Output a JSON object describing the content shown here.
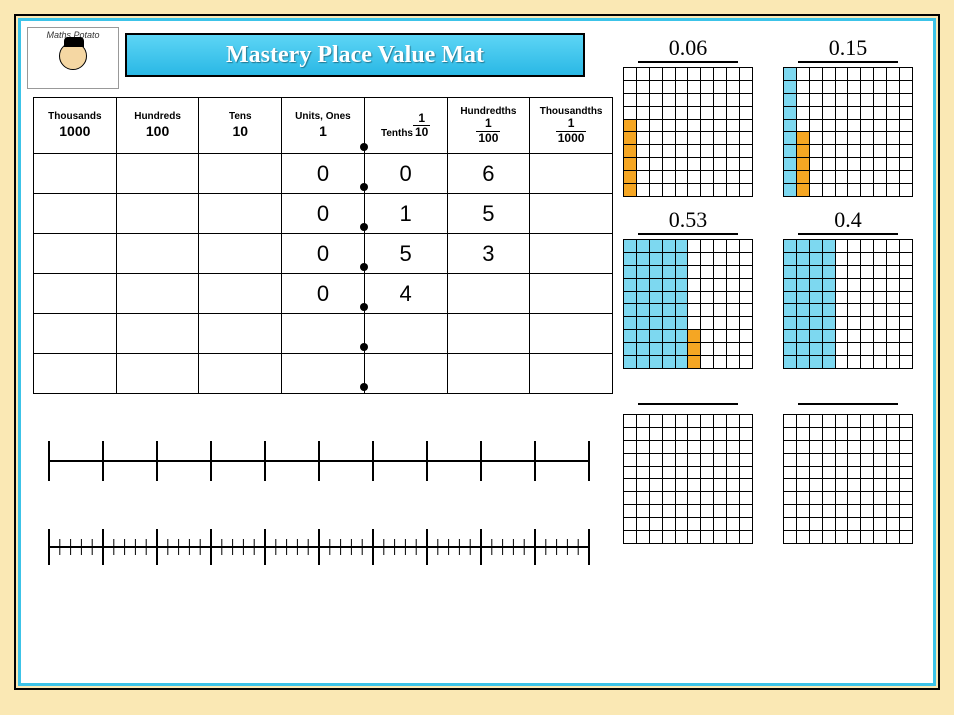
{
  "logo_text": "Maths Potato",
  "title": "Mastery Place Value Mat",
  "columns": [
    {
      "label": "Thousands",
      "value": "1000"
    },
    {
      "label": "Hundreds",
      "value": "100"
    },
    {
      "label": "Tens",
      "value": "10"
    },
    {
      "label": "Units, Ones",
      "value": "1"
    },
    {
      "label": "Tenths",
      "frac_n": "1",
      "frac_d": "10"
    },
    {
      "label": "Hundredths",
      "frac_n": "1",
      "frac_d": "100"
    },
    {
      "label": "Thousandths",
      "frac_n": "1",
      "frac_d": "1000"
    }
  ],
  "rows": [
    [
      "",
      "",
      "",
      "0",
      "0",
      "6",
      ""
    ],
    [
      "",
      "",
      "",
      "0",
      "1",
      "5",
      ""
    ],
    [
      "",
      "",
      "",
      "0",
      "5",
      "3",
      ""
    ],
    [
      "",
      "",
      "",
      "0",
      "4",
      "",
      ""
    ],
    [
      "",
      "",
      "",
      "",
      "",
      "",
      ""
    ],
    [
      "",
      "",
      "",
      "",
      "",
      "",
      ""
    ]
  ],
  "numberline1": {
    "ticks": 11
  },
  "numberline2": {
    "major": 11,
    "minorPerMajor": 5
  },
  "grids": [
    {
      "label": "0.06",
      "tenths": 0,
      "hundredths": 6
    },
    {
      "label": "0.15",
      "tenths": 1,
      "hundredths": 5
    },
    {
      "label": "0.53",
      "tenths": 5,
      "hundredths": 3
    },
    {
      "label": "0.4",
      "tenths": 4,
      "hundredths": 0
    },
    {
      "label": "",
      "tenths": 0,
      "hundredths": 0
    },
    {
      "label": "",
      "tenths": 0,
      "hundredths": 0
    }
  ],
  "colors": {
    "tenth": "#7dd8f0",
    "hundredth": "#f5a623",
    "frameBorder": "#3cc3e8",
    "pageBg": "#fae8b4"
  }
}
